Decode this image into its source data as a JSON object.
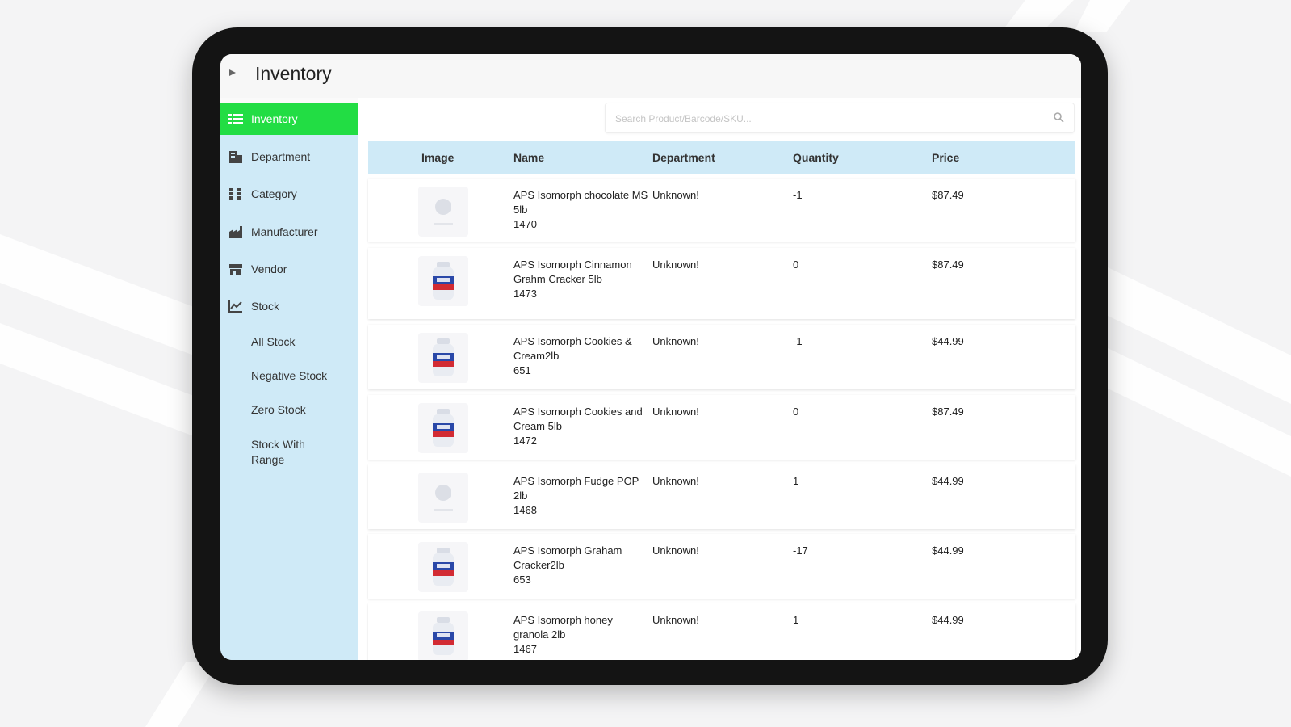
{
  "app": {
    "title": "Inventory"
  },
  "sidebar": {
    "items": [
      {
        "label": "Inventory",
        "icon": "list-icon",
        "active": true
      },
      {
        "label": "Department",
        "icon": "building-icon",
        "active": false
      },
      {
        "label": "Category",
        "icon": "category-icon",
        "active": false
      },
      {
        "label": "Manufacturer",
        "icon": "factory-icon",
        "active": false
      },
      {
        "label": "Vendor",
        "icon": "store-icon",
        "active": false
      },
      {
        "label": "Stock",
        "icon": "chart-icon",
        "active": false
      }
    ],
    "stock_subitems": [
      {
        "label": "All Stock"
      },
      {
        "label": "Negative Stock"
      },
      {
        "label": "Zero Stock"
      },
      {
        "label": "Stock With Range"
      }
    ]
  },
  "search": {
    "placeholder": "Search Product/Barcode/SKU..."
  },
  "table": {
    "headers": [
      "Image",
      "Name",
      "Department",
      "Quantity",
      "Price"
    ],
    "rows": [
      {
        "name": "APS Isomorph chocolate MS 5lb",
        "code": "1470",
        "department": "Unknown!",
        "quantity": "-1",
        "price": "$87.49",
        "has_image": false
      },
      {
        "name": "APS Isomorph Cinnamon Grahm Cracker 5lb",
        "code": "1473",
        "department": "Unknown!",
        "quantity": "0",
        "price": "$87.49",
        "has_image": true
      },
      {
        "name": "APS Isomorph Cookies & Cream2lb",
        "code": "651",
        "department": "Unknown!",
        "quantity": "-1",
        "price": "$44.99",
        "has_image": true
      },
      {
        "name": "APS Isomorph Cookies and Cream 5lb",
        "code": "1472",
        "department": "Unknown!",
        "quantity": "0",
        "price": "$87.49",
        "has_image": true
      },
      {
        "name": "APS Isomorph Fudge POP 2lb",
        "code": "1468",
        "department": "Unknown!",
        "quantity": "1",
        "price": "$44.99",
        "has_image": false
      },
      {
        "name": "APS Isomorph Graham Cracker2lb",
        "code": "653",
        "department": "Unknown!",
        "quantity": "-17",
        "price": "$44.99",
        "has_image": true
      },
      {
        "name": "APS Isomorph honey granola 2lb",
        "code": "1467",
        "department": "Unknown!",
        "quantity": "1",
        "price": "$44.99",
        "has_image": true
      }
    ]
  },
  "colors": {
    "accent": "#22dd44",
    "sidebar_bg": "#cfeaf7",
    "header_bg": "#cfeaf7",
    "tablet_frame": "#141414"
  }
}
